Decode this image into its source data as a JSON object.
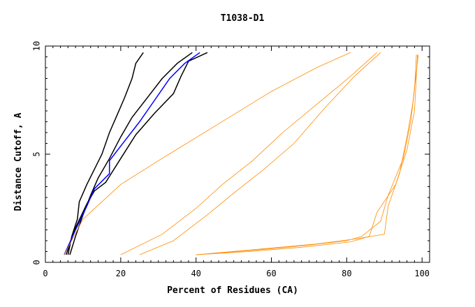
{
  "chart_data": {
    "type": "line",
    "title": "T1038-D1",
    "xlabel": "Percent of Residues (CA)",
    "ylabel": "Distance Cutoff, A",
    "xlim": [
      0,
      102
    ],
    "ylim": [
      0,
      10
    ],
    "x_ticks": [
      0,
      20,
      40,
      60,
      80,
      100
    ],
    "y_ticks": [
      0,
      5,
      10
    ],
    "grid": false,
    "legend": "none",
    "colors": {
      "bulk": "#ff8c00",
      "highlight_black": "#000000",
      "highlight_blue": "#0000ff"
    },
    "series": [
      {
        "color": "#000000",
        "points": [
          [
            6,
            0.35
          ],
          [
            7,
            1.2
          ],
          [
            8.5,
            2.0
          ],
          [
            9,
            2.8
          ],
          [
            11,
            3.6
          ],
          [
            13,
            4.3
          ],
          [
            15,
            5.0
          ],
          [
            17,
            6.0
          ],
          [
            19,
            6.8
          ],
          [
            21,
            7.6
          ],
          [
            23,
            8.5
          ],
          [
            24,
            9.2
          ],
          [
            26,
            9.7
          ]
        ]
      },
      {
        "color": "#000000",
        "points": [
          [
            6.5,
            0.35
          ],
          [
            8,
            1.2
          ],
          [
            10,
            2.2
          ],
          [
            12,
            3.1
          ],
          [
            14,
            3.9
          ],
          [
            17,
            4.8
          ],
          [
            20,
            5.8
          ],
          [
            23,
            6.7
          ],
          [
            27,
            7.6
          ],
          [
            31,
            8.5
          ],
          [
            35,
            9.2
          ],
          [
            39,
            9.7
          ]
        ]
      },
      {
        "color": "#000000",
        "points": [
          [
            5.5,
            0.35
          ],
          [
            8,
            1.6
          ],
          [
            11,
            2.7
          ],
          [
            13,
            3.3
          ],
          [
            16,
            3.7
          ],
          [
            20,
            4.8
          ],
          [
            24,
            5.9
          ],
          [
            29,
            6.9
          ],
          [
            34,
            7.8
          ],
          [
            36,
            8.6
          ],
          [
            38,
            9.3
          ],
          [
            43,
            9.7
          ]
        ]
      },
      {
        "color": "#0000ff",
        "points": [
          [
            5,
            0.35
          ],
          [
            8,
            1.5
          ],
          [
            11,
            2.6
          ],
          [
            13,
            3.4
          ],
          [
            17,
            4.1
          ],
          [
            17,
            4.7
          ],
          [
            21,
            5.6
          ],
          [
            25,
            6.5
          ],
          [
            29,
            7.5
          ],
          [
            33,
            8.5
          ],
          [
            37,
            9.2
          ],
          [
            41,
            9.7
          ]
        ]
      },
      {
        "color": "#ff8c00",
        "points": [
          [
            40,
            0.35
          ],
          [
            55,
            0.55
          ],
          [
            70,
            0.8
          ],
          [
            80,
            1.0
          ],
          [
            84,
            1.2
          ],
          [
            89,
            1.9
          ],
          [
            91,
            3.1
          ],
          [
            95,
            4.8
          ],
          [
            97,
            6.5
          ],
          [
            98,
            8.0
          ],
          [
            98.5,
            9.6
          ]
        ]
      },
      {
        "color": "#ff8c00",
        "points": [
          [
            40,
            0.35
          ],
          [
            56,
            0.6
          ],
          [
            72,
            0.85
          ],
          [
            83,
            1.1
          ],
          [
            90,
            1.3
          ],
          [
            91,
            2.6
          ],
          [
            94,
            4.1
          ],
          [
            96,
            5.8
          ],
          [
            97.5,
            7.3
          ],
          [
            99,
            9.6
          ]
        ]
      },
      {
        "color": "#ff8c00",
        "points": [
          [
            40,
            0.35
          ],
          [
            54,
            0.5
          ],
          [
            68,
            0.7
          ],
          [
            81,
            0.95
          ],
          [
            86,
            1.2
          ],
          [
            88,
            2.3
          ],
          [
            93,
            3.6
          ],
          [
            96,
            5.2
          ],
          [
            98,
            7.0
          ],
          [
            98.8,
            9.6
          ]
        ]
      },
      {
        "color": "#ff8c00",
        "points": [
          [
            5,
            0.35
          ],
          [
            10,
            2.0
          ],
          [
            20,
            3.6
          ],
          [
            30,
            4.7
          ],
          [
            45,
            6.3
          ],
          [
            60,
            7.9
          ],
          [
            72,
            9.0
          ],
          [
            81,
            9.7
          ]
        ]
      },
      {
        "color": "#ff8c00",
        "points": [
          [
            25,
            0.35
          ],
          [
            34,
            1.0
          ],
          [
            43,
            2.2
          ],
          [
            50,
            3.2
          ],
          [
            58,
            4.3
          ],
          [
            66,
            5.5
          ],
          [
            74,
            7.1
          ],
          [
            82,
            8.6
          ],
          [
            89,
            9.7
          ]
        ]
      },
      {
        "color": "#ff8c00",
        "points": [
          [
            20,
            0.35
          ],
          [
            31,
            1.3
          ],
          [
            40,
            2.5
          ],
          [
            47,
            3.6
          ],
          [
            55,
            4.7
          ],
          [
            63,
            6.0
          ],
          [
            72,
            7.3
          ],
          [
            81,
            8.6
          ],
          [
            88,
            9.7
          ]
        ]
      }
    ]
  }
}
